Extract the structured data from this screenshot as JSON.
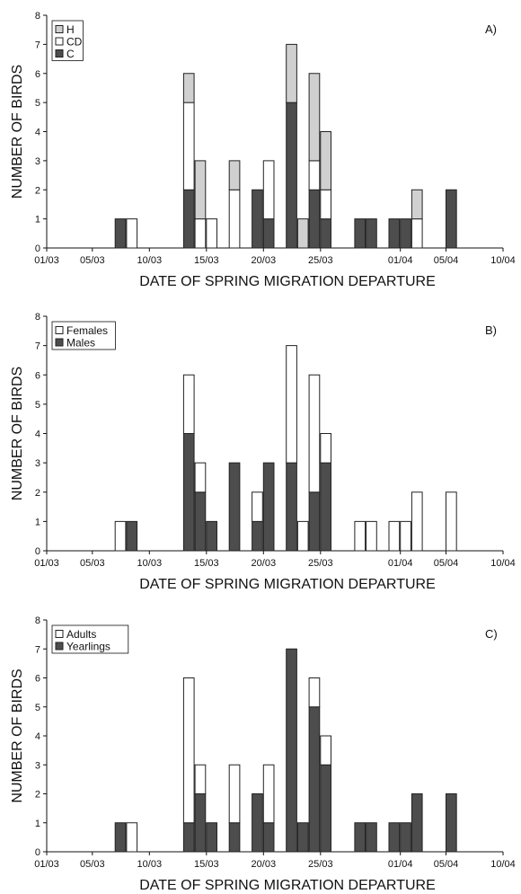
{
  "colors": {
    "dark": "#4d4d4d",
    "light": "#d0d0d0",
    "white": "#ffffff",
    "edge": "#222222"
  },
  "chart_data": [
    {
      "type": "bar",
      "stacked": true,
      "panel_label": "A)",
      "xlabel": "DATE OF SPRING MIGRATION DEPARTURE",
      "ylabel": "NUMBER OF BIRDS",
      "ylim": [
        0,
        8
      ],
      "yticks": [
        "0",
        "1",
        "2",
        "3",
        "4",
        "5",
        "6",
        "7",
        "8"
      ],
      "xticks": [
        "01/03",
        "05/03",
        "10/03",
        "15/03",
        "20/03",
        "25/03",
        "01/04",
        "05/04",
        "10/04"
      ],
      "legend_position": "top-left",
      "x": [
        "07/03",
        "08/03",
        "13/03",
        "14/03",
        "15/03",
        "17/03",
        "19/03",
        "20/03",
        "22/03",
        "23/03",
        "24/03",
        "25/03",
        "28/03",
        "29/03",
        "31/03",
        "01/04",
        "02/04",
        "05/04"
      ],
      "series": [
        {
          "name": "H",
          "color": "light",
          "values": [
            0,
            0,
            1,
            2,
            0,
            1,
            0,
            0,
            2,
            1,
            3,
            2,
            0,
            0,
            0,
            0,
            1,
            0
          ]
        },
        {
          "name": "CD",
          "color": "white",
          "values": [
            0,
            1,
            3,
            1,
            1,
            2,
            0,
            2,
            0,
            0,
            1,
            1,
            0,
            0,
            0,
            0,
            1,
            0
          ]
        },
        {
          "name": "C",
          "color": "dark",
          "values": [
            1,
            0,
            2,
            0,
            0,
            0,
            2,
            1,
            5,
            0,
            2,
            1,
            1,
            1,
            1,
            1,
            0,
            2
          ]
        }
      ]
    },
    {
      "type": "bar",
      "stacked": true,
      "panel_label": "B)",
      "xlabel": "DATE OF SPRING MIGRATION DEPARTURE",
      "ylabel": "NUMBER OF BIRDS",
      "ylim": [
        0,
        8
      ],
      "yticks": [
        "0",
        "1",
        "2",
        "3",
        "4",
        "5",
        "6",
        "7",
        "8"
      ],
      "xticks": [
        "01/03",
        "05/03",
        "10/03",
        "15/03",
        "20/03",
        "25/03",
        "01/04",
        "05/04",
        "10/04"
      ],
      "legend_position": "top-left",
      "x": [
        "07/03",
        "08/03",
        "13/03",
        "14/03",
        "15/03",
        "17/03",
        "19/03",
        "20/03",
        "22/03",
        "23/03",
        "24/03",
        "25/03",
        "28/03",
        "29/03",
        "31/03",
        "01/04",
        "02/04",
        "05/04"
      ],
      "series": [
        {
          "name": "Females",
          "color": "white",
          "values": [
            1,
            0,
            2,
            1,
            0,
            0,
            1,
            0,
            4,
            1,
            4,
            1,
            1,
            1,
            1,
            1,
            2,
            2
          ]
        },
        {
          "name": "Males",
          "color": "dark",
          "values": [
            0,
            1,
            4,
            2,
            1,
            3,
            1,
            3,
            3,
            0,
            2,
            3,
            0,
            0,
            0,
            0,
            0,
            0
          ]
        }
      ]
    },
    {
      "type": "bar",
      "stacked": true,
      "panel_label": "C)",
      "xlabel": "DATE OF SPRING MIGRATION DEPARTURE",
      "ylabel": "NUMBER OF BIRDS",
      "ylim": [
        0,
        8
      ],
      "yticks": [
        "0",
        "1",
        "2",
        "3",
        "4",
        "5",
        "6",
        "7",
        "8"
      ],
      "xticks": [
        "01/03",
        "05/03",
        "10/03",
        "15/03",
        "20/03",
        "25/03",
        "01/04",
        "05/04",
        "10/04"
      ],
      "legend_position": "top-left",
      "x": [
        "07/03",
        "08/03",
        "13/03",
        "14/03",
        "15/03",
        "17/03",
        "19/03",
        "20/03",
        "22/03",
        "23/03",
        "24/03",
        "25/03",
        "28/03",
        "29/03",
        "31/03",
        "01/04",
        "02/04",
        "05/04"
      ],
      "series": [
        {
          "name": "Adults",
          "color": "white",
          "values": [
            0,
            1,
            5,
            1,
            0,
            2,
            0,
            2,
            0,
            0,
            1,
            1,
            0,
            0,
            0,
            0,
            0,
            0
          ]
        },
        {
          "name": "Yearlings",
          "color": "dark",
          "values": [
            1,
            0,
            1,
            2,
            1,
            1,
            2,
            1,
            7,
            1,
            5,
            3,
            1,
            1,
            1,
            1,
            2,
            2
          ]
        }
      ]
    }
  ]
}
